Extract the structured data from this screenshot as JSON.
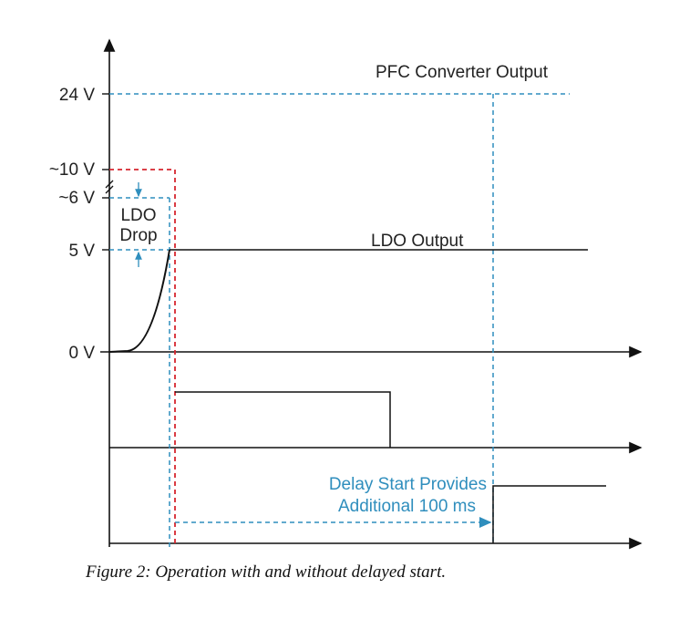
{
  "axis_labels": {
    "v24": "24 V",
    "v10": "~10 V",
    "v6": "~6 V",
    "v5": "5 V",
    "v0": "0 V"
  },
  "annotations": {
    "pfc_output": "PFC Converter Output",
    "ldo_drop_line1": "LDO",
    "ldo_drop_line2": "Drop",
    "ldo_output": "LDO Output",
    "delay_line1": "Delay Start Provides",
    "delay_line2": "Additional 100 ms"
  },
  "caption": "Figure 2: Operation with and without delayed start.",
  "colors": {
    "axis": "#111111",
    "trace": "#111111",
    "blue_dashed": "#2f8ebd",
    "red_dashed": "#d6262f"
  }
}
